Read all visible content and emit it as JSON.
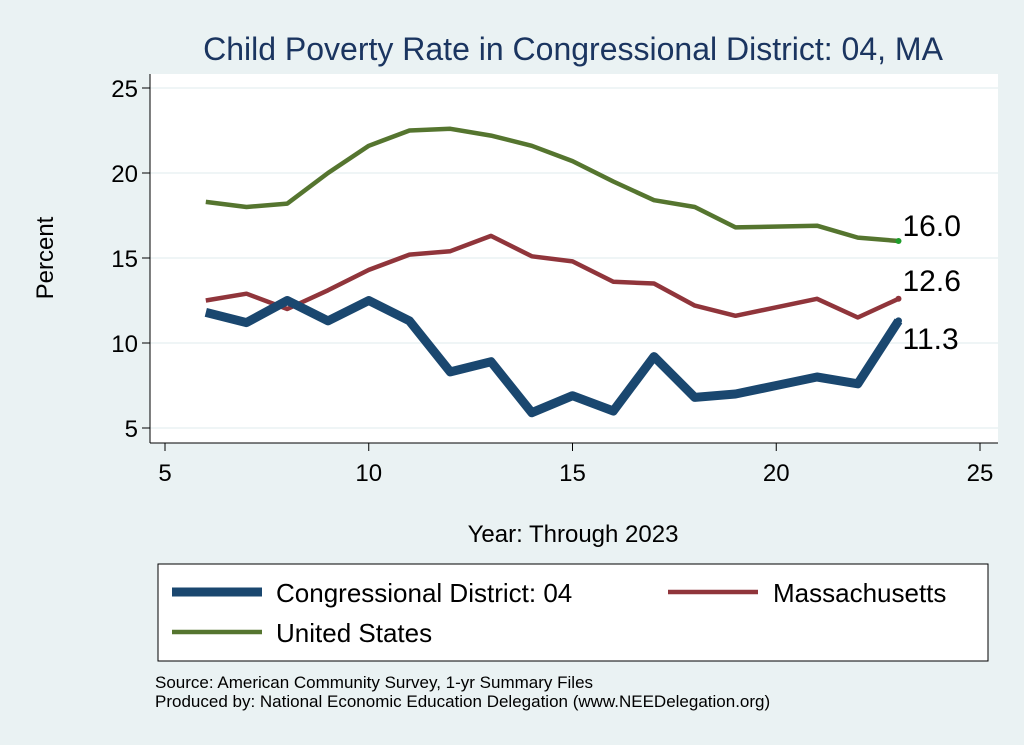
{
  "chart_data": {
    "type": "line",
    "title": "Child Poverty Rate in Congressional District:  04, MA",
    "xlabel": "Year: Through 2023",
    "ylabel": "Percent",
    "xlim": [
      5,
      25
    ],
    "ylim": [
      5,
      25
    ],
    "xticks": [
      "5",
      "10",
      "15",
      "20",
      "25"
    ],
    "yticks": [
      "5",
      "10",
      "15",
      "20",
      "25"
    ],
    "grid": "horizontal",
    "legend_position": "bottom",
    "series": [
      {
        "name": "Congressional District:  04",
        "color": "#1a476f",
        "x": [
          6,
          7,
          8,
          9,
          10,
          11,
          12,
          13,
          14,
          15,
          16,
          17,
          18,
          19,
          20,
          21,
          22,
          23
        ],
        "y": [
          11.8,
          11.2,
          12.5,
          11.3,
          12.5,
          11.3,
          8.3,
          8.9,
          5.9,
          6.9,
          6.0,
          9.2,
          6.8,
          7.0,
          7.5,
          8.0,
          7.6,
          11.3
        ],
        "end_label": "11.3"
      },
      {
        "name": "Massachusetts",
        "color": "#90353b",
        "x": [
          6,
          7,
          8,
          9,
          10,
          11,
          12,
          13,
          14,
          15,
          16,
          17,
          18,
          19,
          20,
          21,
          22,
          23
        ],
        "y": [
          12.5,
          12.9,
          12.0,
          13.1,
          14.3,
          15.2,
          15.4,
          16.3,
          15.1,
          14.8,
          13.6,
          13.5,
          12.2,
          11.6,
          12.1,
          12.6,
          11.5,
          12.6
        ],
        "end_label": "12.6"
      },
      {
        "name": "United States",
        "color": "#55752f",
        "x": [
          6,
          7,
          8,
          9,
          10,
          11,
          12,
          13,
          14,
          15,
          16,
          17,
          18,
          19,
          21,
          22,
          23
        ],
        "y": [
          18.3,
          18.0,
          18.2,
          20.0,
          21.6,
          22.5,
          22.6,
          22.2,
          21.6,
          20.7,
          19.5,
          18.4,
          18.0,
          16.8,
          16.9,
          16.2,
          16.0
        ],
        "end_label": "16.0"
      }
    ],
    "source_lines": [
      "Source: American Community Survey, 1-yr Summary Files",
      "Produced by: National Economic Education Delegation (www.NEEDelegation.org)"
    ]
  }
}
